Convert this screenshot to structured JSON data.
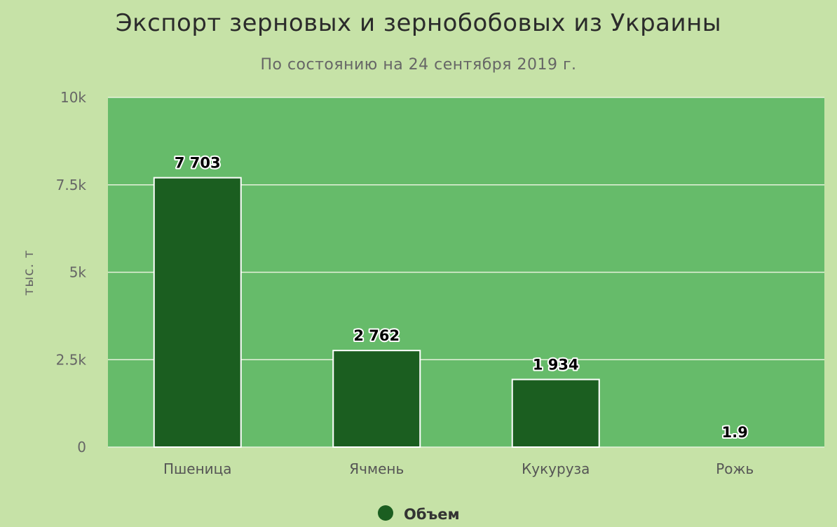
{
  "chart_data": {
    "type": "bar",
    "title": "Экспорт зерновых и зернобобовых из Украины",
    "subtitle": "По состоянию на 24 сентября 2019 г.",
    "ylabel": "тыс. т",
    "xlabel": "",
    "categories": [
      "Пшеница",
      "Ячмень",
      "Кукуруза",
      "Рожь"
    ],
    "series": [
      {
        "name": "Объем",
        "values": [
          7703,
          2762,
          1934,
          1.9
        ],
        "data_labels": [
          "7 703",
          "2 762",
          "1 934",
          "1.9"
        ],
        "color": "#1b5e20"
      }
    ],
    "ylim": [
      0,
      10000
    ],
    "yticks": [
      {
        "value": 0,
        "label": "0"
      },
      {
        "value": 2500,
        "label": "2.5k"
      },
      {
        "value": 5000,
        "label": "5k"
      },
      {
        "value": 7500,
        "label": "7.5k"
      },
      {
        "value": 10000,
        "label": "10k"
      }
    ],
    "grid": true,
    "legend": "bottom-center",
    "colors": {
      "background": "#c6e2a7",
      "plot_background": "#66bb6a",
      "bar": "#1b5e20",
      "grid": "#e6f2dc"
    }
  }
}
